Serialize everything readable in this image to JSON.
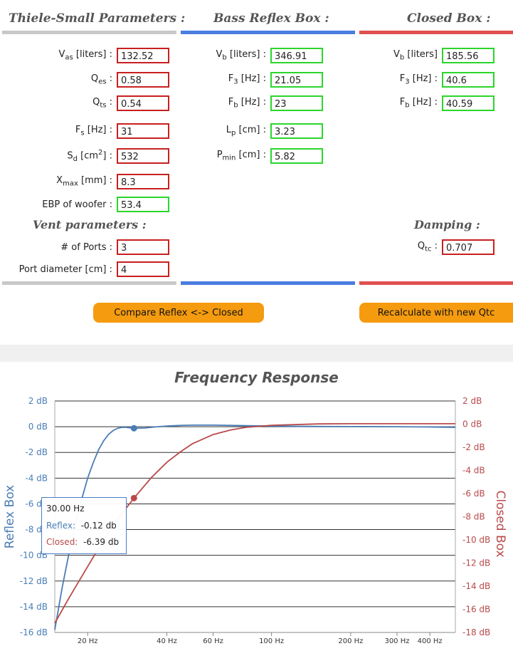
{
  "columns": {
    "ts": {
      "title": "Thiele-Small Parameters :",
      "color": "#c8c8c8"
    },
    "reflex": {
      "title": "Bass Reflex Box :",
      "color": "#4a7de0"
    },
    "closed": {
      "title": "Closed Box :",
      "color": "#e05050"
    }
  },
  "ts_params": {
    "vas": {
      "label_main": "V",
      "label_sub": "as",
      "label_rest": " [liters] :",
      "value": "132.52"
    },
    "qes": {
      "label_main": "Q",
      "label_sub": "es",
      "label_rest": " :",
      "value": "0.58"
    },
    "qts": {
      "label_main": "Q",
      "label_sub": "ts",
      "label_rest": " :",
      "value": "0.54"
    },
    "fs": {
      "label_main": "F",
      "label_sub": "s",
      "label_rest": " [Hz] :",
      "value": "31"
    },
    "sd": {
      "label_main": "S",
      "label_sub": "d",
      "label_rest": " [cm",
      "label_sup": "2",
      "label_end": "] :",
      "value": "532"
    },
    "xmax": {
      "label_main": "X",
      "label_sub": "max",
      "label_rest": " [mm] :",
      "value": "8.3"
    },
    "ebp": {
      "label": "EBP of woofer :",
      "value": "53.4"
    }
  },
  "vent": {
    "title": "Vent parameters :",
    "ports": {
      "label": "# of Ports :",
      "value": "3"
    },
    "diameter": {
      "label": "Port diameter [cm] :",
      "value": "4"
    }
  },
  "reflex": {
    "vb": {
      "label_main": "V",
      "label_sub": "b",
      "label_rest": " [liters] :",
      "value": "346.91"
    },
    "f3": {
      "label_main": "F",
      "label_sub": "3",
      "label_rest": " [Hz] :",
      "value": "21.05"
    },
    "fb": {
      "label_main": "F",
      "label_sub": "b",
      "label_rest": " [Hz] :",
      "value": "23"
    },
    "lp": {
      "label_main": "L",
      "label_sub": "p",
      "label_rest": " [cm] :",
      "value": "3.23"
    },
    "pmin": {
      "label_main": "P",
      "label_sub": "min",
      "label_rest": " [cm] :",
      "value": "5.82"
    }
  },
  "closed": {
    "vb": {
      "label_main": "V",
      "label_sub": "b",
      "label_rest": " [liters]",
      "value": "185.56"
    },
    "f3": {
      "label_main": "F",
      "label_sub": "3",
      "label_rest": " [Hz] :",
      "value": "40.6"
    },
    "fb": {
      "label_main": "F",
      "label_sub": "b",
      "label_rest": " [Hz] :",
      "value": "40.59"
    }
  },
  "damping": {
    "title": "Damping :",
    "qtc": {
      "label_main": "Q",
      "label_sub": "tc",
      "label_rest": " :",
      "value": "0.707"
    }
  },
  "buttons": {
    "compare": "Compare Reflex <-> Closed",
    "recalc": "Recalculate with new Qtc"
  },
  "chart_title": "Frequency Response",
  "tooltip": {
    "freq": "30.00 Hz",
    "reflex_label": "Reflex:",
    "reflex_value": "-0.12 db",
    "closed_label": "Closed:",
    "closed_value": "-6.39 db"
  },
  "chart_data": {
    "type": "line",
    "title": "Frequency Response",
    "x_scale": "log",
    "x_ticks": [
      {
        "v": 20,
        "label": "20 Hz"
      },
      {
        "v": 40,
        "label": "40 Hz"
      },
      {
        "v": 60,
        "label": "60 Hz"
      },
      {
        "v": 100,
        "label": "100 Hz"
      },
      {
        "v": 200,
        "label": "200 Hz"
      },
      {
        "v": 300,
        "label": "300 Hz"
      },
      {
        "v": 400,
        "label": "400 Hz"
      }
    ],
    "xlim": [
      15,
      500
    ],
    "y_left": {
      "label": "Reflex Box",
      "min": -16,
      "max": 2,
      "step": 2,
      "unit": " dB",
      "color": "#4a7db5"
    },
    "y_right": {
      "label": "Closed Box",
      "min": -18,
      "max": 2,
      "step": 2,
      "unit": " dB",
      "color": "#b94a4a"
    },
    "series": [
      {
        "name": "Reflex",
        "axis": "left",
        "color": "#4a7db5",
        "x": [
          15,
          16,
          17,
          18,
          19,
          20,
          21,
          22,
          23,
          24,
          25,
          26,
          27,
          28,
          30,
          33,
          36,
          40,
          45,
          50,
          60,
          70,
          80,
          100,
          150,
          200,
          300,
          400,
          500
        ],
        "y": [
          -15.8,
          -12.5,
          -9.8,
          -7.5,
          -5.6,
          -4.0,
          -2.8,
          -1.8,
          -1.1,
          -0.6,
          -0.3,
          -0.12,
          -0.05,
          -0.05,
          -0.12,
          -0.1,
          -0.02,
          0.05,
          0.1,
          0.12,
          0.12,
          0.1,
          0.08,
          0.05,
          0.02,
          0.01,
          0.0,
          -0.02,
          -0.05
        ]
      },
      {
        "name": "Closed",
        "axis": "right",
        "color": "#b94a4a",
        "x": [
          15,
          17,
          20,
          23,
          26,
          30,
          35,
          40,
          45,
          50,
          60,
          70,
          80,
          100,
          150,
          200,
          300,
          400,
          500
        ],
        "y": [
          -17.2,
          -15.0,
          -12.3,
          -10.0,
          -8.2,
          -6.39,
          -4.6,
          -3.3,
          -2.4,
          -1.7,
          -0.9,
          -0.5,
          -0.28,
          -0.1,
          0.02,
          0.04,
          0.04,
          0.04,
          0.04
        ]
      }
    ],
    "highlight_x": 30,
    "highlight": [
      {
        "series": "Reflex",
        "y": -0.12
      },
      {
        "series": "Closed",
        "y": -6.39
      }
    ]
  }
}
